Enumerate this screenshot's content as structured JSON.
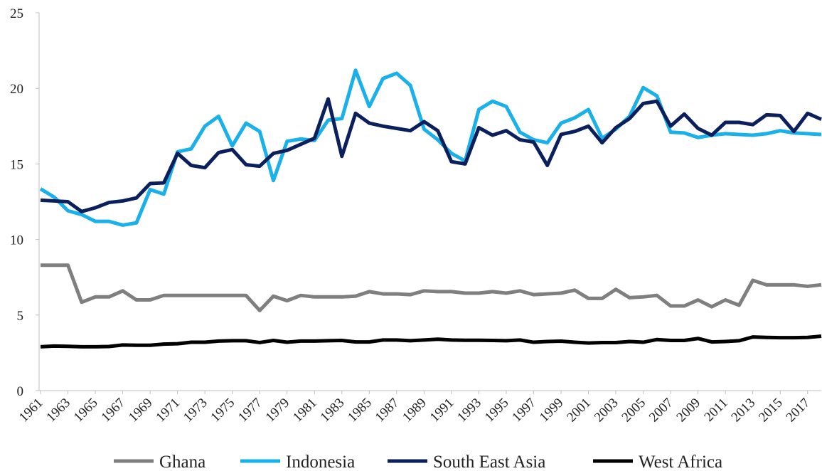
{
  "chart_data": {
    "type": "line",
    "x": [
      1961,
      1962,
      1963,
      1964,
      1965,
      1966,
      1967,
      1968,
      1969,
      1970,
      1971,
      1972,
      1973,
      1974,
      1975,
      1976,
      1977,
      1978,
      1979,
      1980,
      1981,
      1982,
      1983,
      1984,
      1985,
      1986,
      1987,
      1988,
      1989,
      1990,
      1991,
      1992,
      1993,
      1994,
      1995,
      1996,
      1997,
      1998,
      1999,
      2000,
      2001,
      2002,
      2003,
      2004,
      2005,
      2006,
      2007,
      2008,
      2009,
      2010,
      2011,
      2012,
      2013,
      2014,
      2015,
      2016,
      2017,
      2018
    ],
    "xlim": [
      1961,
      2018
    ],
    "xticks": [
      1961,
      1963,
      1965,
      1967,
      1969,
      1971,
      1973,
      1975,
      1977,
      1979,
      1981,
      1983,
      1985,
      1987,
      1989,
      1991,
      1993,
      1995,
      1997,
      1999,
      2001,
      2003,
      2005,
      2007,
      2009,
      2011,
      2013,
      2015,
      2017
    ],
    "ylim": [
      0,
      25
    ],
    "yticks": [
      0,
      5,
      10,
      15,
      20,
      25
    ],
    "legend": "bottom",
    "series": [
      {
        "name": "Ghana",
        "color": "#7f7f7f",
        "values": [
          8.3,
          8.3,
          8.3,
          5.85,
          6.2,
          6.2,
          6.6,
          6.0,
          6.0,
          6.3,
          6.3,
          6.3,
          6.3,
          6.3,
          6.3,
          6.3,
          5.3,
          6.25,
          5.95,
          6.3,
          6.2,
          6.2,
          6.2,
          6.25,
          6.55,
          6.4,
          6.4,
          6.35,
          6.6,
          6.55,
          6.55,
          6.45,
          6.45,
          6.55,
          6.45,
          6.6,
          6.35,
          6.4,
          6.45,
          6.65,
          6.1,
          6.1,
          6.7,
          6.15,
          6.2,
          6.3,
          5.6,
          5.6,
          6.0,
          5.55,
          6.0,
          5.65,
          7.3,
          7.0,
          7.0,
          7.0,
          6.9,
          7.0
        ]
      },
      {
        "name": "Indonesia",
        "color": "#1ab0ea",
        "values": [
          13.35,
          12.8,
          11.9,
          11.65,
          11.2,
          11.2,
          10.95,
          11.1,
          13.3,
          13.0,
          15.8,
          16.0,
          17.5,
          18.15,
          16.2,
          17.7,
          17.15,
          13.9,
          16.5,
          16.65,
          16.55,
          17.9,
          18.0,
          21.2,
          18.8,
          20.65,
          21.0,
          20.2,
          17.3,
          16.6,
          15.7,
          15.2,
          18.6,
          19.15,
          18.8,
          17.1,
          16.6,
          16.4,
          17.7,
          18.05,
          18.6,
          16.7,
          17.3,
          18.15,
          20.05,
          19.5,
          17.1,
          17.05,
          16.75,
          16.9,
          17.0,
          16.95,
          16.9,
          17.0,
          17.2,
          17.05,
          17.0,
          16.95
        ]
      },
      {
        "name": "South East Asia",
        "color": "#0a1f5c",
        "values": [
          12.6,
          12.55,
          12.5,
          11.85,
          12.1,
          12.45,
          12.55,
          12.75,
          13.7,
          13.75,
          15.7,
          14.9,
          14.75,
          15.75,
          15.95,
          14.95,
          14.85,
          15.7,
          15.9,
          16.3,
          16.7,
          19.3,
          15.5,
          18.35,
          17.7,
          17.5,
          17.35,
          17.2,
          17.8,
          17.2,
          15.15,
          15.0,
          17.4,
          16.9,
          17.2,
          16.6,
          16.45,
          14.9,
          16.95,
          17.15,
          17.5,
          16.4,
          17.4,
          18.0,
          19.0,
          19.15,
          17.5,
          18.3,
          17.35,
          16.9,
          17.75,
          17.75,
          17.6,
          18.25,
          18.2,
          17.15,
          18.35,
          17.95
        ]
      },
      {
        "name": "West Africa",
        "color": "#000000",
        "values": [
          2.9,
          2.95,
          2.93,
          2.9,
          2.9,
          2.92,
          3.02,
          3.0,
          3.0,
          3.08,
          3.1,
          3.2,
          3.2,
          3.28,
          3.3,
          3.3,
          3.18,
          3.32,
          3.2,
          3.28,
          3.28,
          3.3,
          3.32,
          3.22,
          3.22,
          3.35,
          3.35,
          3.3,
          3.35,
          3.4,
          3.35,
          3.33,
          3.33,
          3.32,
          3.3,
          3.35,
          3.2,
          3.25,
          3.27,
          3.2,
          3.15,
          3.18,
          3.18,
          3.25,
          3.2,
          3.38,
          3.32,
          3.32,
          3.45,
          3.22,
          3.25,
          3.3,
          3.55,
          3.52,
          3.5,
          3.5,
          3.52,
          3.6
        ]
      }
    ]
  }
}
